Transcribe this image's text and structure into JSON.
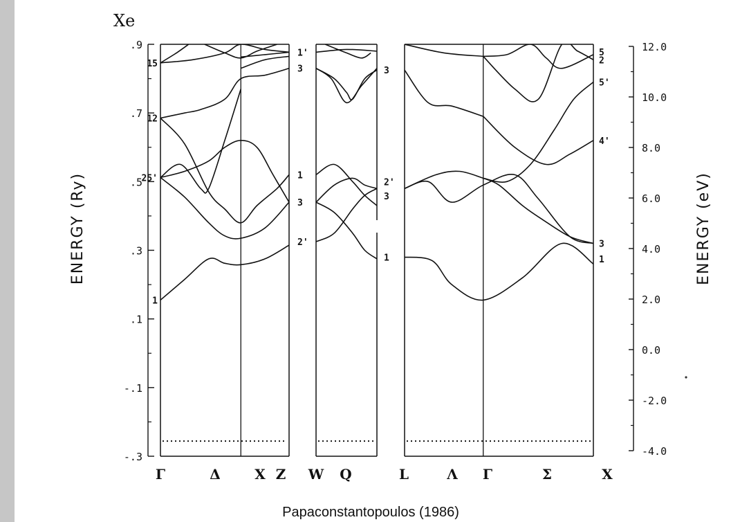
{
  "chart_data": {
    "type": "line",
    "title": "Xe",
    "caption": "Papaconstantopoulos (1986)",
    "ylabel_left": "ENERGY  (Ry)",
    "ylabel_right": "ENERGY  (eV)",
    "ylim_ry": [
      -0.3,
      0.9
    ],
    "left_ticks": [
      ".9",
      ".7",
      ".5",
      ".3",
      ".1",
      "-.1",
      "-.3"
    ],
    "right_ticks": [
      "12.0",
      "10.0",
      "8.0",
      "6.0",
      "4.0",
      "2.0",
      "0.0",
      "-2.0",
      "-4.0"
    ],
    "k_labels": [
      "Γ",
      "Δ",
      "X",
      "Z",
      "W",
      "Q",
      "L",
      "Λ",
      "Γ",
      "Σ",
      "X"
    ],
    "fermi_level_ry": -0.256,
    "grid": false,
    "panels": [
      {
        "name": "Γ-X-W",
        "symmetry_points": [
          "Γ",
          "X",
          "W"
        ],
        "point_labels": [
          {
            "text": "15",
            "at": "Γ",
            "e": 0.846
          },
          {
            "text": "12",
            "at": "Γ",
            "e": 0.685
          },
          {
            "text": "25'",
            "at": "Γ",
            "e": 0.512
          },
          {
            "text": "1",
            "at": "Γ",
            "e": 0.155
          },
          {
            "text": "1'",
            "at": "W",
            "e": 0.877
          },
          {
            "text": "3",
            "at": "W",
            "e": 0.83
          },
          {
            "text": "1",
            "at": "W",
            "e": 0.52
          },
          {
            "text": "3",
            "at": "W",
            "e": 0.44
          },
          {
            "text": "2'",
            "at": "W",
            "e": 0.325
          }
        ],
        "bands": [
          {
            "k": [
              0,
              0.3,
              0.6,
              0.8,
              1.0,
              1.3,
              1.6
            ],
            "e": [
              0.155,
              0.215,
              0.275,
              0.262,
              0.258,
              0.275,
              0.315
            ]
          },
          {
            "k": [
              0,
              0.3,
              0.6,
              0.8,
              1.0,
              1.3,
              1.6
            ],
            "e": [
              0.512,
              0.455,
              0.38,
              0.342,
              0.335,
              0.365,
              0.44
            ]
          },
          {
            "k": [
              0,
              0.3,
              0.6,
              0.8,
              1.0,
              1.2,
              1.4,
              1.6
            ],
            "e": [
              0.512,
              0.53,
              0.56,
              0.6,
              0.62,
              0.6,
              0.52,
              0.44
            ]
          },
          {
            "k": [
              0,
              0.25,
              0.5,
              0.6,
              0.8,
              1.0
            ],
            "e": [
              0.512,
              0.55,
              0.48,
              0.48,
              0.62,
              0.77
            ]
          },
          {
            "k": [
              0,
              0.3,
              0.6,
              0.8,
              1.0,
              1.2,
              1.45,
              1.6
            ],
            "e": [
              0.685,
              0.61,
              0.47,
              0.42,
              0.38,
              0.43,
              0.48,
              0.52
            ]
          },
          {
            "k": [
              0,
              0.3,
              0.5,
              0.8,
              1.0,
              1.3,
              1.6
            ],
            "e": [
              0.685,
              0.7,
              0.71,
              0.74,
              0.8,
              0.81,
              0.83
            ]
          },
          {
            "k": [
              1.0,
              1.3,
              1.6
            ],
            "e": [
              0.863,
              0.87,
              0.877
            ]
          },
          {
            "k": [
              1.0,
              1.3,
              1.6
            ],
            "e": [
              0.83,
              0.855,
              0.865
            ]
          },
          {
            "k": [
              0,
              0.4,
              0.8,
              1.0,
              1.3,
              1.6
            ],
            "e": [
              0.846,
              0.855,
              0.875,
              0.9,
              0.885,
              0.877
            ]
          },
          {
            "k": [
              0,
              0.2,
              0.35
            ],
            "e": [
              0.846,
              0.875,
              0.9
            ]
          },
          {
            "k": [
              0.55,
              0.8,
              1.0,
              1.2,
              1.45
            ],
            "e": [
              0.9,
              0.875,
              0.86,
              0.88,
              0.9
            ]
          }
        ]
      },
      {
        "name": "W-Q-L",
        "symmetry_points": [
          "W",
          "L"
        ],
        "point_labels": [
          {
            "text": "3",
            "at": "L",
            "e": 0.825
          },
          {
            "text": "2'",
            "at": "L",
            "e": 0.5
          },
          {
            "text": "3",
            "at": "L",
            "e": 0.458
          },
          {
            "text": "1",
            "at": "L",
            "e": 0.28
          }
        ],
        "bands": [
          {
            "k": [
              0,
              0.3,
              0.6,
              0.8,
              1.0
            ],
            "e": [
              0.325,
              0.35,
              0.42,
              0.46,
              0.48
            ]
          },
          {
            "k": [
              0,
              0.3,
              0.6,
              0.8,
              1.0
            ],
            "e": [
              0.44,
              0.41,
              0.35,
              0.3,
              0.275
            ]
          },
          {
            "k": [
              0,
              0.3,
              0.6,
              0.8,
              1.0
            ],
            "e": [
              0.44,
              0.49,
              0.51,
              0.49,
              0.48
            ]
          },
          {
            "k": [
              0,
              0.3,
              0.6,
              0.8,
              1.0
            ],
            "e": [
              0.52,
              0.55,
              0.5,
              0.46,
              0.43
            ]
          },
          {
            "k": [
              0,
              0.25,
              0.5,
              0.75,
              1.0
            ],
            "e": [
              0.83,
              0.8,
              0.73,
              0.78,
              0.83
            ]
          },
          {
            "k": [
              0,
              0.3,
              0.5,
              0.6,
              0.8,
              1.0
            ],
            "e": [
              0.83,
              0.8,
              0.76,
              0.74,
              0.8,
              0.825
            ]
          },
          {
            "k": [
              0,
              0.5,
              1.0
            ],
            "e": [
              0.877,
              0.885,
              0.88
            ]
          },
          {
            "k": [
              0.15,
              0.5,
              0.75,
              0.9
            ],
            "e": [
              0.9,
              0.875,
              0.86,
              0.875
            ]
          }
        ]
      },
      {
        "name": "L-Γ-X",
        "symmetry_points": [
          "L",
          "Γ",
          "X"
        ],
        "point_labels": [
          {
            "text": "5",
            "at": "X",
            "e": 0.878
          },
          {
            "text": "2",
            "at": "X",
            "e": 0.855
          },
          {
            "text": "5'",
            "at": "X",
            "e": 0.79
          },
          {
            "text": "4'",
            "at": "X",
            "e": 0.62
          },
          {
            "text": "3",
            "at": "X",
            "e": 0.32
          },
          {
            "text": "1",
            "at": "X",
            "e": 0.275
          }
        ],
        "bands": [
          {
            "k": [
              0,
              0.35,
              0.6,
              1.0,
              1.5,
              2.0,
              2.4
            ],
            "e": [
              0.28,
              0.27,
              0.2,
              0.155,
              0.22,
              0.32,
              0.26
            ]
          },
          {
            "k": [
              0,
              0.3,
              0.6,
              1.0,
              1.4,
              1.7,
              2.1,
              2.4
            ],
            "e": [
              0.48,
              0.5,
              0.44,
              0.49,
              0.52,
              0.45,
              0.34,
              0.32
            ]
          },
          {
            "k": [
              0,
              0.4,
              0.7,
              1.0
            ],
            "e": [
              0.48,
              0.52,
              0.53,
              0.51
            ]
          },
          {
            "k": [
              1.0,
              1.2,
              1.5,
              1.75,
              2.1,
              2.4
            ],
            "e": [
              0.51,
              0.49,
              0.43,
              0.39,
              0.34,
              0.32
            ]
          },
          {
            "k": [
              0,
              0.3,
              0.6,
              1.0
            ],
            "e": [
              0.825,
              0.73,
              0.72,
              0.69
            ]
          },
          {
            "k": [
              1.0,
              1.4,
              1.8,
              2.1,
              2.4
            ],
            "e": [
              0.69,
              0.6,
              0.55,
              0.58,
              0.62
            ]
          },
          {
            "k": [
              1.0,
              1.3,
              1.6,
              1.9,
              2.15,
              2.4
            ],
            "e": [
              0.51,
              0.5,
              0.55,
              0.65,
              0.74,
              0.79
            ]
          },
          {
            "k": [
              0,
              0.5,
              1.0
            ],
            "e": [
              0.9,
              0.875,
              0.865
            ]
          },
          {
            "k": [
              1.0,
              1.3,
              1.6,
              1.8,
              2.0,
              2.4
            ],
            "e": [
              0.865,
              0.87,
              0.9,
              0.86,
              0.83,
              0.87
            ]
          },
          {
            "k": [
              1.0,
              1.4,
              1.7,
              2.0,
              2.2,
              2.4
            ],
            "e": [
              0.865,
              0.77,
              0.74,
              0.9,
              0.88,
              0.855
            ]
          }
        ]
      }
    ]
  }
}
